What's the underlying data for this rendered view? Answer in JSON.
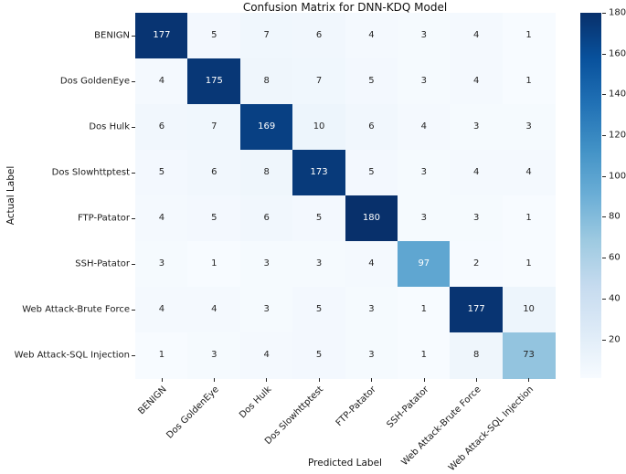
{
  "chart_data": {
    "type": "heatmap",
    "title": "Confusion Matrix for DNN-KDQ Model",
    "xlabel": "Predicted Label",
    "ylabel": "Actual Label",
    "categories": [
      "BENIGN",
      "Dos GoldenEye",
      "Dos Hulk",
      "Dos Slowhttptest",
      "FTP-Patator",
      "SSH-Patator",
      "Web Attack-Brute Force",
      "Web Attack-SQL Injection"
    ],
    "matrix": [
      [
        177,
        5,
        7,
        6,
        4,
        3,
        4,
        1
      ],
      [
        4,
        175,
        8,
        7,
        5,
        3,
        4,
        1
      ],
      [
        6,
        7,
        169,
        10,
        6,
        4,
        3,
        3
      ],
      [
        5,
        6,
        8,
        173,
        5,
        3,
        4,
        4
      ],
      [
        4,
        5,
        6,
        5,
        180,
        3,
        3,
        1
      ],
      [
        3,
        1,
        3,
        3,
        4,
        97,
        2,
        1
      ],
      [
        4,
        4,
        3,
        5,
        3,
        1,
        177,
        10
      ],
      [
        1,
        3,
        4,
        5,
        3,
        1,
        8,
        73
      ]
    ],
    "vmin": 1,
    "vmax": 180,
    "colormap": "Blues",
    "colormap_stops": [
      "#f7fbff",
      "#deebf7",
      "#c6dbef",
      "#9ecae1",
      "#6baed6",
      "#4292c6",
      "#2171b5",
      "#08519c",
      "#08306b"
    ],
    "colorbar_ticks": [
      20,
      40,
      60,
      80,
      100,
      120,
      140,
      160,
      180
    ],
    "annotation_colors": {
      "on_light": "#262626",
      "on_dark": "#ffffff"
    },
    "legend_position": "right-colorbar",
    "grid": false
  }
}
